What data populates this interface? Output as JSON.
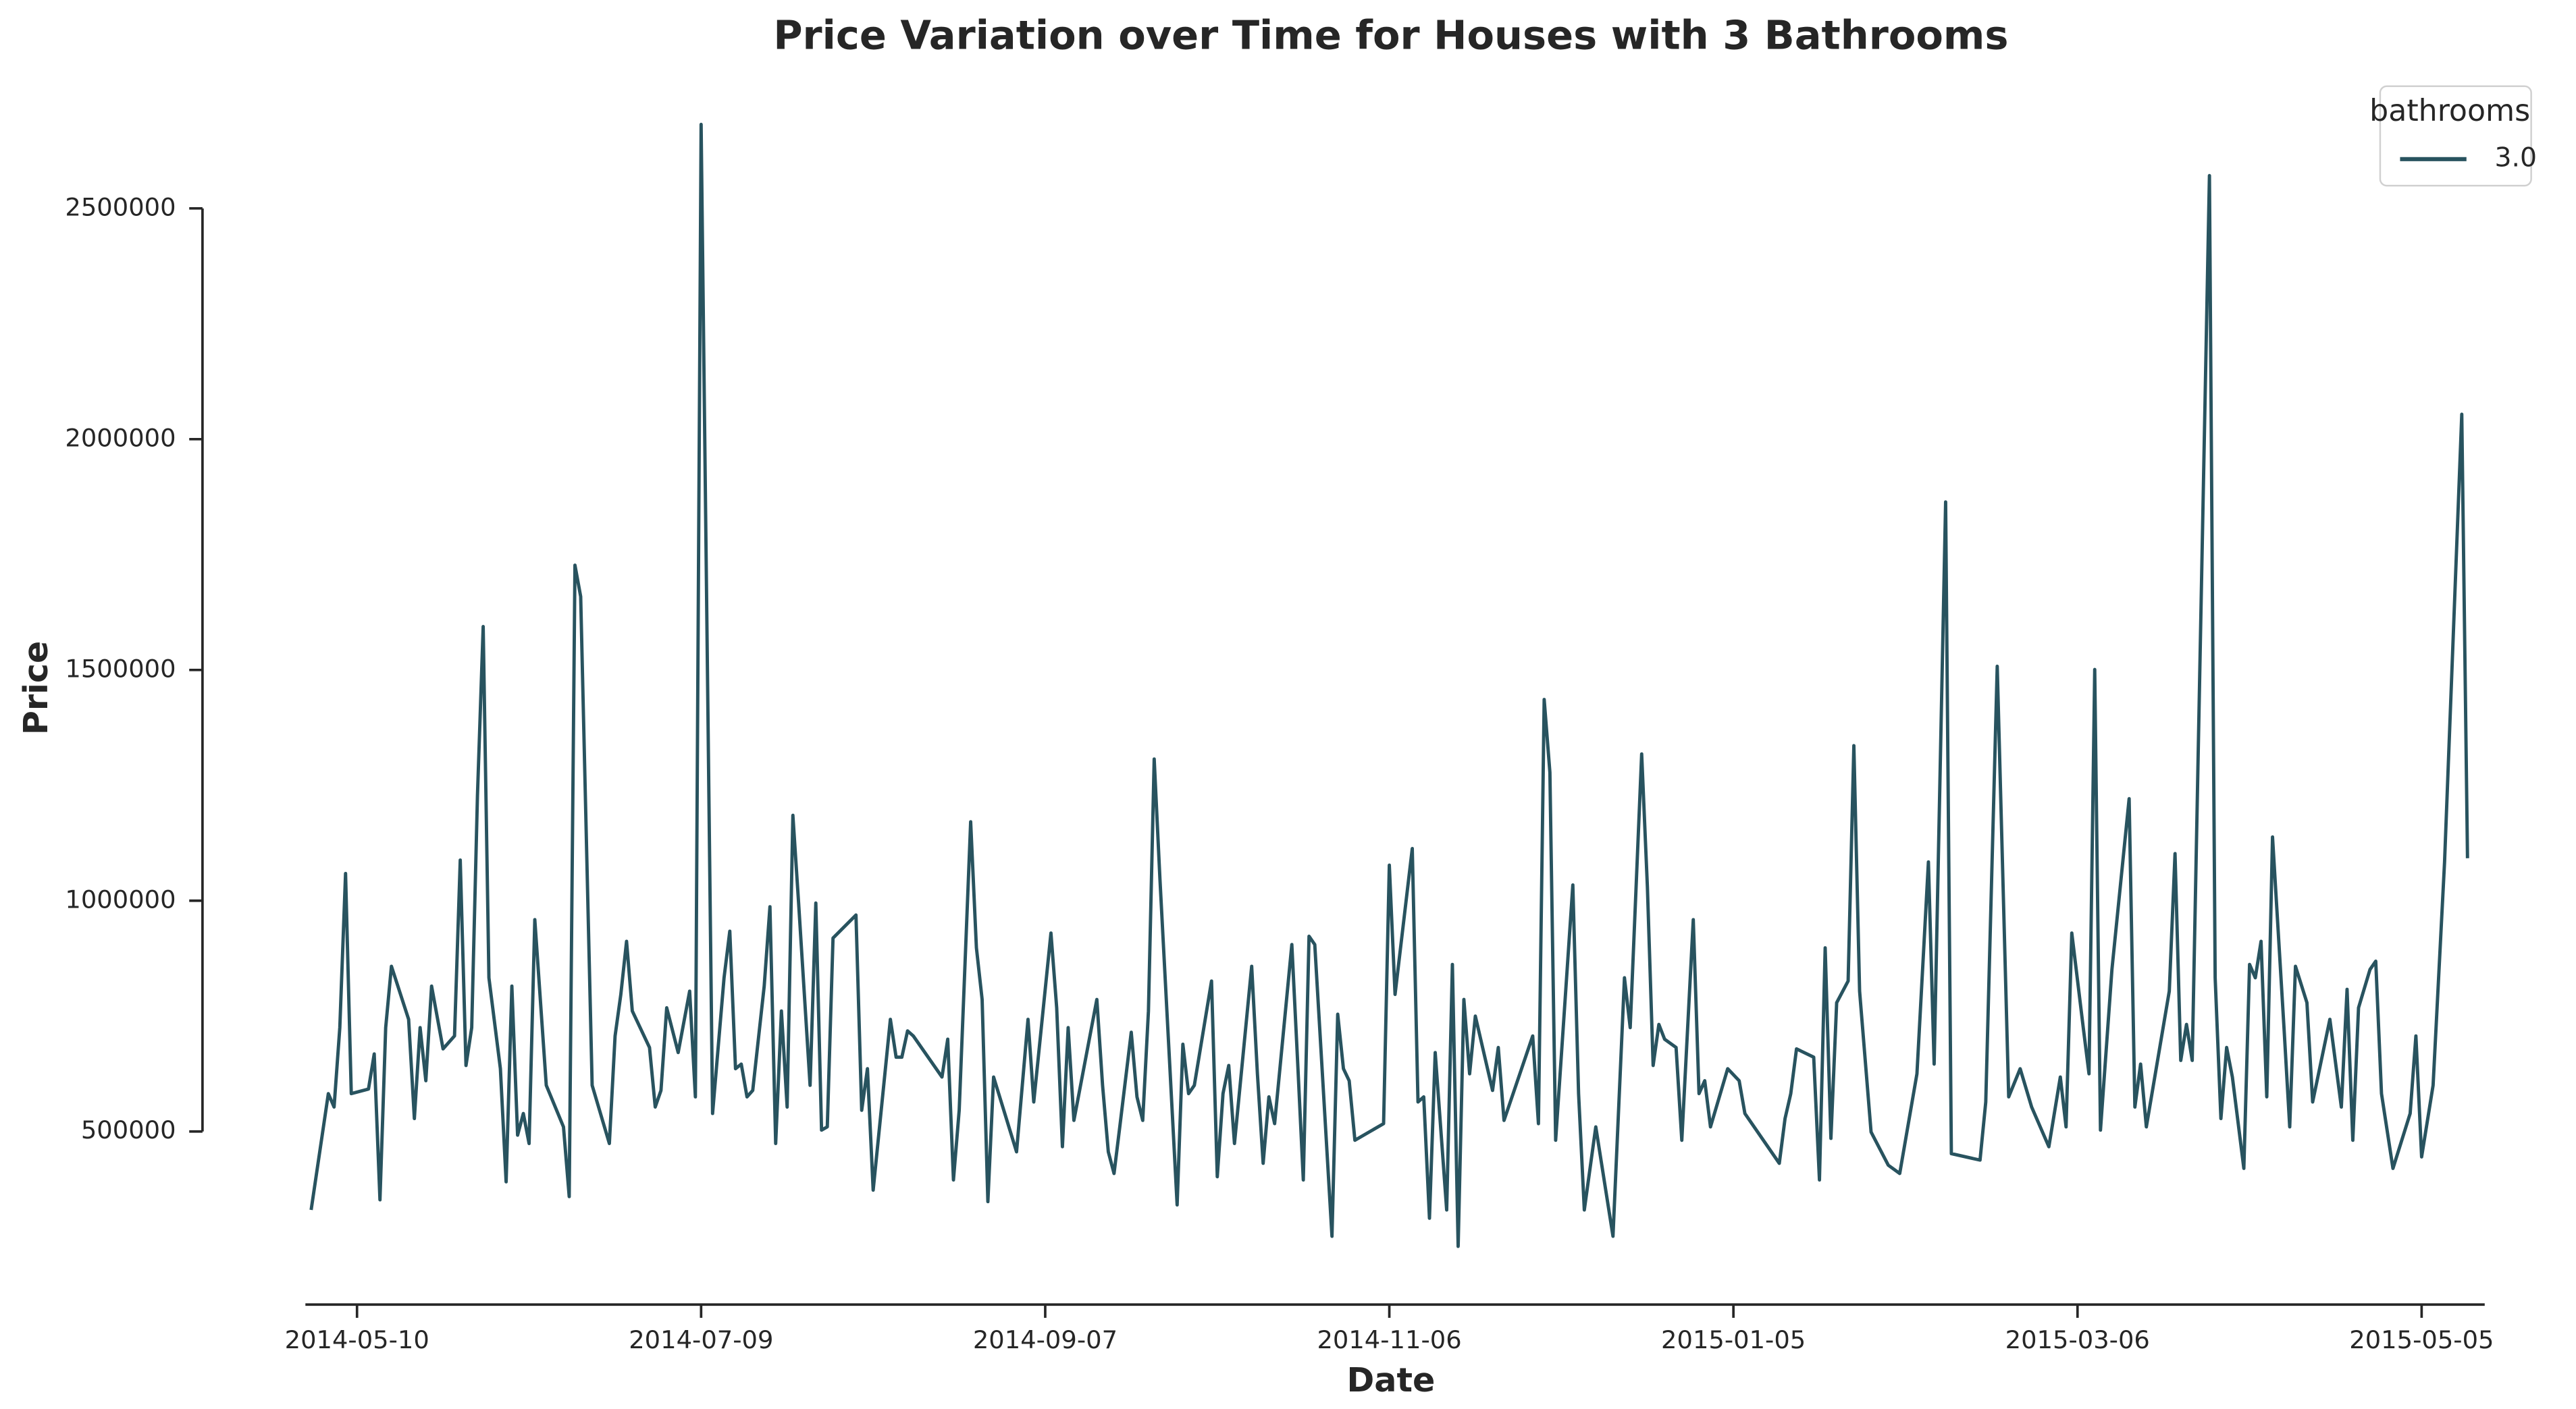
{
  "chart_data": {
    "type": "line",
    "title": "Price Variation over Time for Houses with 3 Bathrooms",
    "xlabel": "Date",
    "ylabel": "Price",
    "legend_title": "bathrooms",
    "legend_position": "upper right",
    "x": [
      "2014-05-02",
      "2014-05-05",
      "2014-05-06",
      "2014-05-07",
      "2014-05-08",
      "2014-05-09",
      "2014-05-12",
      "2014-05-13",
      "2014-05-14",
      "2014-05-15",
      "2014-05-16",
      "2014-05-19",
      "2014-05-20",
      "2014-05-21",
      "2014-05-22",
      "2014-05-23",
      "2014-05-25",
      "2014-05-27",
      "2014-05-28",
      "2014-05-29",
      "2014-05-30",
      "2014-05-31",
      "2014-06-01",
      "2014-06-02",
      "2014-06-04",
      "2014-06-05",
      "2014-06-06",
      "2014-06-07",
      "2014-06-08",
      "2014-06-09",
      "2014-06-10",
      "2014-06-12",
      "2014-06-15",
      "2014-06-16",
      "2014-06-17",
      "2014-06-18",
      "2014-06-20",
      "2014-06-23",
      "2014-06-24",
      "2014-06-25",
      "2014-06-26",
      "2014-06-27",
      "2014-06-30",
      "2014-07-01",
      "2014-07-02",
      "2014-07-03",
      "2014-07-05",
      "2014-07-07",
      "2014-07-08",
      "2014-07-09",
      "2014-07-11",
      "2014-07-13",
      "2014-07-14",
      "2014-07-15",
      "2014-07-16",
      "2014-07-17",
      "2014-07-18",
      "2014-07-20",
      "2014-07-21",
      "2014-07-22",
      "2014-07-23",
      "2014-07-24",
      "2014-07-25",
      "2014-07-26",
      "2014-07-28",
      "2014-07-29",
      "2014-07-30",
      "2014-07-31",
      "2014-08-01",
      "2014-08-05",
      "2014-08-06",
      "2014-08-07",
      "2014-08-08",
      "2014-08-11",
      "2014-08-12",
      "2014-08-13",
      "2014-08-14",
      "2014-08-15",
      "2014-08-20",
      "2014-08-21",
      "2014-08-22",
      "2014-08-23",
      "2014-08-25",
      "2014-08-26",
      "2014-08-27",
      "2014-08-28",
      "2014-08-29",
      "2014-09-02",
      "2014-09-04",
      "2014-09-05",
      "2014-09-08",
      "2014-09-09",
      "2014-09-10",
      "2014-09-11",
      "2014-09-12",
      "2014-09-16",
      "2014-09-17",
      "2014-09-18",
      "2014-09-19",
      "2014-09-20",
      "2014-09-22",
      "2014-09-23",
      "2014-09-24",
      "2014-09-25",
      "2014-09-26",
      "2014-09-27",
      "2014-09-30",
      "2014-10-01",
      "2014-10-02",
      "2014-10-03",
      "2014-10-06",
      "2014-10-07",
      "2014-10-08",
      "2014-10-09",
      "2014-10-10",
      "2014-10-13",
      "2014-10-14",
      "2014-10-15",
      "2014-10-16",
      "2014-10-17",
      "2014-10-20",
      "2014-10-21",
      "2014-10-22",
      "2014-10-23",
      "2014-10-24",
      "2014-10-27",
      "2014-10-28",
      "2014-10-29",
      "2014-10-30",
      "2014-10-31",
      "2014-11-05",
      "2014-11-06",
      "2014-11-07",
      "2014-11-10",
      "2014-11-11",
      "2014-11-12",
      "2014-11-13",
      "2014-11-14",
      "2014-11-16",
      "2014-11-17",
      "2014-11-18",
      "2014-11-19",
      "2014-11-20",
      "2014-11-21",
      "2014-11-24",
      "2014-11-25",
      "2014-11-26",
      "2014-12-01",
      "2014-12-02",
      "2014-12-03",
      "2014-12-04",
      "2014-12-05",
      "2014-12-08",
      "2014-12-09",
      "2014-12-10",
      "2014-12-12",
      "2014-12-15",
      "2014-12-17",
      "2014-12-18",
      "2014-12-20",
      "2014-12-21",
      "2014-12-22",
      "2014-12-23",
      "2014-12-24",
      "2014-12-26",
      "2014-12-27",
      "2014-12-29",
      "2014-12-30",
      "2014-12-31",
      "2015-01-01",
      "2015-01-04",
      "2015-01-06",
      "2015-01-07",
      "2015-01-13",
      "2015-01-14",
      "2015-01-15",
      "2015-01-16",
      "2015-01-19",
      "2015-01-20",
      "2015-01-21",
      "2015-01-22",
      "2015-01-23",
      "2015-01-25",
      "2015-01-26",
      "2015-01-27",
      "2015-01-29",
      "2015-02-01",
      "2015-02-03",
      "2015-02-06",
      "2015-02-08",
      "2015-02-09",
      "2015-02-11",
      "2015-02-12",
      "2015-02-17",
      "2015-02-18",
      "2015-02-20",
      "2015-02-22",
      "2015-02-24",
      "2015-02-26",
      "2015-03-01",
      "2015-03-03",
      "2015-03-04",
      "2015-03-05",
      "2015-03-07",
      "2015-03-08",
      "2015-03-09",
      "2015-03-10",
      "2015-03-12",
      "2015-03-15",
      "2015-03-16",
      "2015-03-17",
      "2015-03-18",
      "2015-03-22",
      "2015-03-23",
      "2015-03-24",
      "2015-03-25",
      "2015-03-26",
      "2015-03-29",
      "2015-03-30",
      "2015-03-31",
      "2015-04-01",
      "2015-04-02",
      "2015-04-04",
      "2015-04-05",
      "2015-04-06",
      "2015-04-07",
      "2015-04-08",
      "2015-04-09",
      "2015-04-11",
      "2015-04-12",
      "2015-04-13",
      "2015-04-15",
      "2015-04-16",
      "2015-04-19",
      "2015-04-21",
      "2015-04-22",
      "2015-04-23",
      "2015-04-24",
      "2015-04-26",
      "2015-04-27",
      "2015-04-28",
      "2015-04-30",
      "2015-05-03",
      "2015-05-04",
      "2015-05-05",
      "2015-05-07",
      "2015-05-09",
      "2015-05-12",
      "2015-05-13"
    ],
    "series": [
      {
        "name": "3.0",
        "color": "#28535f",
        "values": [
          330000,
          582000,
          553000,
          725000,
          1059000,
          582000,
          592000,
          668000,
          352000,
          725000,
          858000,
          743000,
          528000,
          725000,
          610000,
          815000,
          679000,
          707000,
          1088000,
          643000,
          725000,
          1228000,
          1594000,
          833000,
          636000,
          391000,
          815000,
          492000,
          539000,
          474000,
          959000,
          600000,
          510000,
          359000,
          1727000,
          1659000,
          600000,
          474000,
          707000,
          797000,
          912000,
          761000,
          682000,
          553000,
          589000,
          768000,
          671000,
          804000,
          575000,
          2682000,
          539000,
          833000,
          934000,
          636000,
          646000,
          575000,
          589000,
          815000,
          987000,
          474000,
          761000,
          553000,
          1185000,
          995000,
          600000,
          995000,
          503000,
          510000,
          919000,
          969000,
          546000,
          636000,
          373000,
          743000,
          661000,
          661000,
          718000,
          707000,
          618000,
          700000,
          395000,
          546000,
          1171000,
          898000,
          786000,
          348000,
          618000,
          456000,
          743000,
          564000,
          930000,
          768000,
          467000,
          725000,
          524000,
          786000,
          600000,
          456000,
          409000,
          510000,
          715000,
          575000,
          524000,
          761000,
          1307000,
          1048000,
          341000,
          689000,
          582000,
          600000,
          826000,
          402000,
          582000,
          643000,
          474000,
          858000,
          625000,
          431000,
          575000,
          517000,
          905000,
          654000,
          395000,
          923000,
          905000,
          273000,
          754000,
          636000,
          610000,
          481000,
          517000,
          1077000,
          797000,
          1113000,
          564000,
          575000,
          312000,
          671000,
          330000,
          862000,
          251000,
          786000,
          625000,
          750000,
          589000,
          682000,
          524000,
          707000,
          517000,
          1436000,
          1278000,
          481000,
          1034000,
          582000,
          330000,
          510000,
          273000,
          833000,
          725000,
          1318000,
          1030000,
          643000,
          732000,
          700000,
          682000,
          481000,
          959000,
          582000,
          610000,
          510000,
          636000,
          610000,
          539000,
          431000,
          528000,
          582000,
          679000,
          661000,
          395000,
          898000,
          485000,
          779000,
          826000,
          1336000,
          804000,
          499000,
          427000,
          409000,
          625000,
          1084000,
          646000,
          1864000,
          452000,
          438000,
          564000,
          1508000,
          575000,
          636000,
          553000,
          467000,
          618000,
          510000,
          930000,
          725000,
          625000,
          1501000,
          503000,
          851000,
          1221000,
          553000,
          646000,
          510000,
          804000,
          1102000,
          654000,
          732000,
          654000,
          2571000,
          833000,
          528000,
          682000,
          618000,
          420000,
          862000,
          833000,
          912000,
          575000,
          1138000,
          725000,
          510000,
          858000,
          779000,
          564000,
          743000,
          553000,
          808000,
          481000,
          768000,
          851000,
          869000,
          582000,
          420000,
          539000,
          707000,
          445000,
          600000,
          1084000,
          2054000,
          1092000
        ]
      }
    ],
    "xlim": [
      "2014-05-01",
      "2015-05-16"
    ],
    "xticks": [
      "2014-05-10",
      "2014-07-09",
      "2014-09-07",
      "2014-11-06",
      "2015-01-05",
      "2015-03-06",
      "2015-05-05"
    ],
    "ylim": [
      125000,
      2810000
    ],
    "yticks": [
      500000,
      1000000,
      1500000,
      2000000,
      2500000
    ],
    "grid": false
  }
}
